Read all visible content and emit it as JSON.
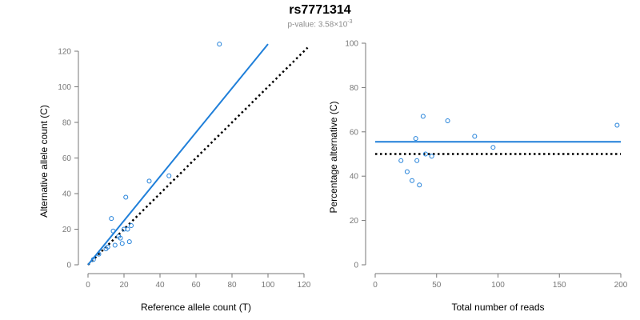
{
  "title": "rs7771314",
  "subtitle": {
    "prefix": "p-value: ",
    "mantissa": "3.58",
    "times": "×10",
    "exponent": "-3"
  },
  "colors": {
    "series": "#1f7fd9",
    "reference_line": "#000000",
    "axis": "#777777"
  },
  "chart_data": [
    {
      "type": "scatter",
      "xlabel": "Reference allele count (T)",
      "ylabel": "Alternative allele count (C)",
      "xlim": [
        0,
        120
      ],
      "ylim": [
        0,
        120
      ],
      "xticks": [
        0,
        20,
        40,
        60,
        80,
        100,
        120
      ],
      "yticks": [
        0,
        20,
        40,
        60,
        80,
        100,
        120
      ],
      "grid": false,
      "points": [
        [
          3,
          3
        ],
        [
          6,
          6
        ],
        [
          10,
          9
        ],
        [
          11,
          10
        ],
        [
          13,
          26
        ],
        [
          14,
          19
        ],
        [
          15,
          11
        ],
        [
          17,
          16
        ],
        [
          18,
          15
        ],
        [
          19,
          12
        ],
        [
          20,
          20
        ],
        [
          21,
          38
        ],
        [
          22,
          20
        ],
        [
          23,
          13
        ],
        [
          24,
          22
        ],
        [
          34,
          47
        ],
        [
          45,
          50
        ],
        [
          73,
          124
        ]
      ],
      "fit_line": {
        "style": "solid",
        "from": [
          0,
          0
        ],
        "to": [
          100,
          124
        ]
      },
      "reference_line": {
        "style": "dotted",
        "from": [
          0,
          0
        ],
        "to": [
          122,
          122
        ]
      }
    },
    {
      "type": "scatter",
      "xlabel": "Total number of reads",
      "ylabel": "Percentage alternative (C)",
      "xlim": [
        0,
        200
      ],
      "ylim": [
        0,
        100
      ],
      "xticks": [
        0,
        50,
        100,
        150,
        200
      ],
      "yticks": [
        0,
        20,
        40,
        60,
        80,
        100
      ],
      "grid": false,
      "points": [
        [
          21,
          47
        ],
        [
          26,
          42
        ],
        [
          30,
          38
        ],
        [
          33,
          57
        ],
        [
          34,
          47
        ],
        [
          36,
          36
        ],
        [
          39,
          67
        ],
        [
          41,
          50
        ],
        [
          46,
          49
        ],
        [
          59,
          65
        ],
        [
          81,
          58
        ],
        [
          96,
          53
        ],
        [
          197,
          63
        ]
      ],
      "fit_line": {
        "style": "solid",
        "y": 55.5,
        "from_x": 0,
        "to_x": 200
      },
      "reference_line": {
        "style": "dotted",
        "y": 50,
        "from_x": 0,
        "to_x": 200
      }
    }
  ]
}
